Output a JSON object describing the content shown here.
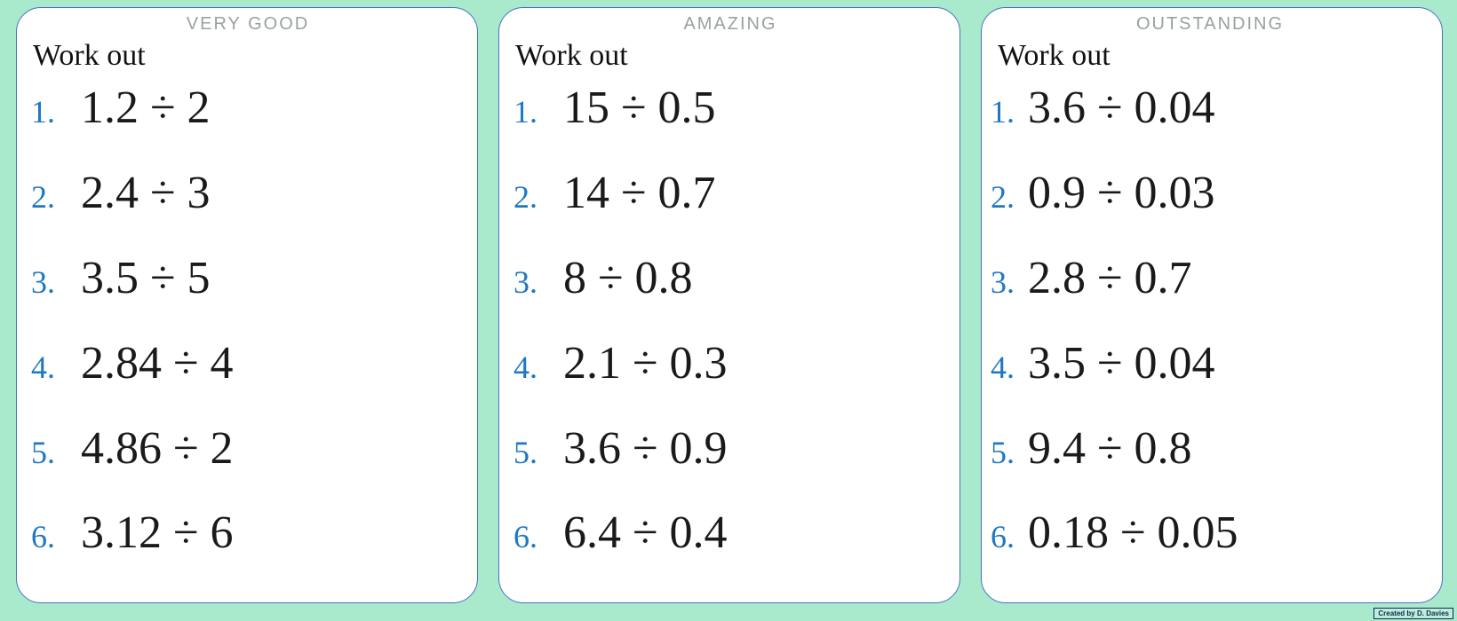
{
  "colors": {
    "background": "#a9e9cc",
    "card_border": "#4472c4",
    "number_blue": "#1f78c2",
    "title_gray": "#9aa0a2",
    "text_black": "#1a1a1a"
  },
  "cards": [
    {
      "title": "VERY GOOD",
      "heading": "Work out",
      "problems": [
        {
          "num": "1.",
          "expr": "1.2 ÷ 2"
        },
        {
          "num": "2.",
          "expr": "2.4 ÷ 3"
        },
        {
          "num": "3.",
          "expr": "3.5 ÷ 5"
        },
        {
          "num": "4.",
          "expr": "2.84 ÷ 4"
        },
        {
          "num": "5.",
          "expr": "4.86 ÷ 2"
        },
        {
          "num": "6.",
          "expr": "3.12 ÷ 6"
        }
      ]
    },
    {
      "title": "AMAZING",
      "heading": "Work out",
      "problems": [
        {
          "num": "1.",
          "expr": "15 ÷ 0.5"
        },
        {
          "num": "2.",
          "expr": "14 ÷ 0.7"
        },
        {
          "num": "3.",
          "expr": "8 ÷ 0.8"
        },
        {
          "num": "4.",
          "expr": "2.1 ÷ 0.3"
        },
        {
          "num": "5.",
          "expr": "3.6 ÷ 0.9"
        },
        {
          "num": "6.",
          "expr": "6.4 ÷ 0.4"
        }
      ]
    },
    {
      "title": "OUTSTANDING",
      "heading": "Work out",
      "problems": [
        {
          "num": "1.",
          "expr": "3.6 ÷ 0.04"
        },
        {
          "num": "2.",
          "expr": "0.9 ÷ 0.03"
        },
        {
          "num": "3.",
          "expr": "2.8 ÷ 0.7"
        },
        {
          "num": "4.",
          "expr": "3.5 ÷ 0.04"
        },
        {
          "num": "5.",
          "expr": "9.4 ÷ 0.8"
        },
        {
          "num": "6.",
          "expr": "0.18 ÷ 0.05"
        }
      ]
    }
  ],
  "footer": {
    "credit": "Created by D. Davies"
  }
}
